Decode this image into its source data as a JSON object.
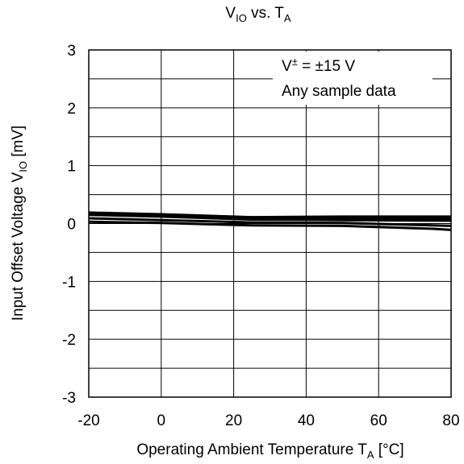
{
  "chart_data": {
    "type": "line",
    "title": {
      "main": "V",
      "main_sub": "IO",
      "mid": " vs. T",
      "tail_sub": "A"
    },
    "xlabel": {
      "main": "Operating Ambient Temperature T",
      "sub": "A",
      "unit": " [°C]"
    },
    "ylabel": {
      "main": "Input Offset Voltage V",
      "sub": "IO",
      "unit": " [mV]"
    },
    "xlim": [
      -20,
      80
    ],
    "ylim": [
      -3,
      3
    ],
    "x_ticks": [
      "-20",
      "0",
      "20",
      "40",
      "60",
      "80"
    ],
    "y_ticks": [
      "3",
      "2",
      "1",
      "0",
      "-1",
      "-2",
      "-3"
    ],
    "x_grid_step": 20,
    "y_grid_step": 0.5,
    "grid": true,
    "annotation": {
      "line1_prefix": "V",
      "line1_sup": "±",
      "line1_rest": " = ±15 V",
      "line2": "Any sample data",
      "position": "top-right"
    },
    "series": [
      {
        "x": [
          -20,
          0,
          25,
          50,
          75,
          80
        ],
        "values": [
          0.19,
          0.16,
          0.11,
          0.12,
          0.12,
          0.12
        ]
      },
      {
        "x": [
          -20,
          0,
          25,
          50,
          75,
          80
        ],
        "values": [
          0.17,
          0.14,
          0.09,
          0.09,
          0.09,
          0.09
        ]
      },
      {
        "x": [
          -20,
          0,
          25,
          50,
          75,
          80
        ],
        "values": [
          0.15,
          0.12,
          0.07,
          0.06,
          0.05,
          0.05
        ]
      },
      {
        "x": [
          -20,
          0,
          25,
          50,
          75,
          80
        ],
        "values": [
          0.09,
          0.06,
          0.02,
          0.01,
          -0.03,
          -0.04
        ]
      },
      {
        "x": [
          -20,
          0,
          25,
          50,
          75,
          80
        ],
        "values": [
          0.03,
          0.01,
          -0.03,
          -0.04,
          -0.09,
          -0.11
        ]
      }
    ],
    "line_color": "#000000",
    "grid_color": "#000000"
  }
}
